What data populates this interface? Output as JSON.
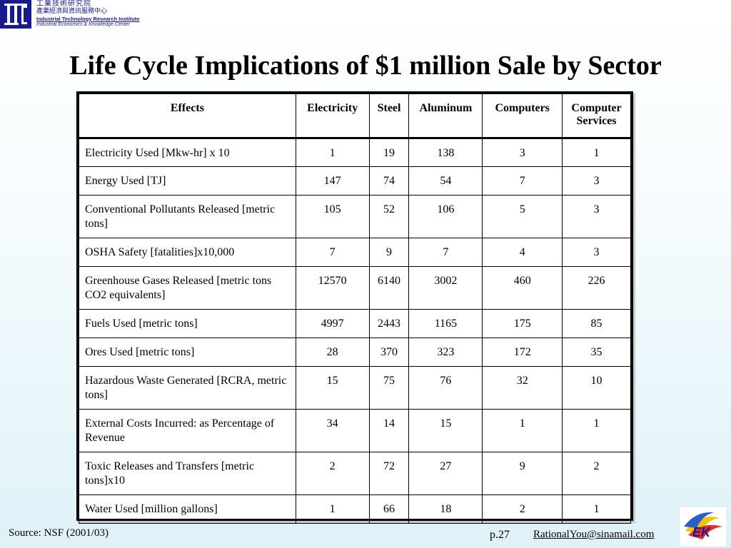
{
  "header": {
    "org_zh_1": "工業技術研究院",
    "org_zh_2": "產業經濟與資訊服務中心",
    "org_en_1": "Industrial Technology Research Institute",
    "org_en_2": "Industrial Economics & Knowledge Center",
    "logo_icon": "itri-logo-icon"
  },
  "title": "Life Cycle Implications of $1 million Sale by Sector",
  "table": {
    "columns": [
      "Effects",
      "Electricity",
      "Steel",
      "Aluminum",
      "Computers",
      "Computer Services"
    ],
    "rows": [
      {
        "effect": "Electricity Used [Mkw-hr] x 10",
        "values": [
          "1",
          "19",
          "138",
          "3",
          "1"
        ]
      },
      {
        "effect": "Energy Used [TJ]",
        "values": [
          "147",
          "74",
          "54",
          "7",
          "3"
        ]
      },
      {
        "effect": "Conventional Pollutants Released [metric tons]",
        "values": [
          "105",
          "52",
          "106",
          "5",
          "3"
        ]
      },
      {
        "effect": "OSHA Safety [fatalities]x10,000",
        "values": [
          "7",
          "9",
          "7",
          "4",
          "3"
        ]
      },
      {
        "effect": "Greenhouse Gases Released [metric tons CO2 equivalents]",
        "values": [
          "12570",
          "6140",
          "3002",
          "460",
          "226"
        ]
      },
      {
        "effect": "Fuels Used [metric tons]",
        "values": [
          "4997",
          "2443",
          "1165",
          "175",
          "85"
        ]
      },
      {
        "effect": "Ores Used [metric tons]",
        "values": [
          "28",
          "370",
          "323",
          "172",
          "35"
        ]
      },
      {
        "effect": "Hazardous Waste Generated [RCRA, metric tons]",
        "values": [
          "15",
          "75",
          "76",
          "32",
          "10"
        ]
      },
      {
        "effect": "External Costs Incurred: as Percentage of Revenue",
        "values": [
          "34",
          "14",
          "15",
          "1",
          "1"
        ]
      },
      {
        "effect": "Toxic Releases and Transfers [metric tons]x10",
        "values": [
          "2",
          "72",
          "27",
          "9",
          "2"
        ]
      },
      {
        "effect": "Water Used [million gallons]",
        "values": [
          "1",
          "66",
          "18",
          "2",
          "1"
        ]
      }
    ]
  },
  "footer": {
    "source": "Source: NSF (2001/03)",
    "page": "p.27",
    "email": "RationalYou@sinamail.com",
    "badge_icon": "iek-badge-icon"
  }
}
